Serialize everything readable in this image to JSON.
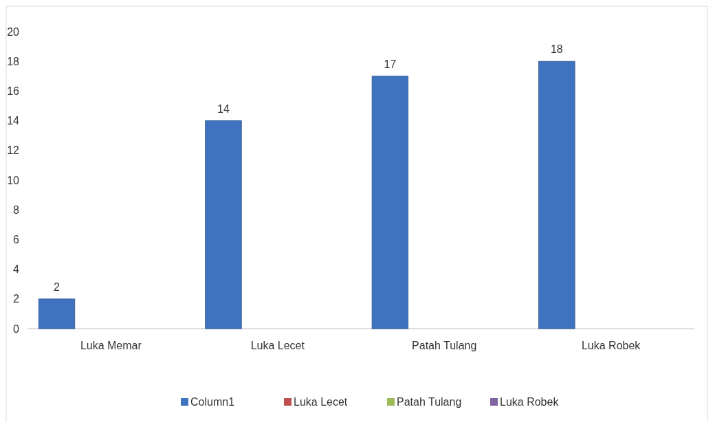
{
  "chart_data": {
    "type": "bar",
    "categories": [
      "Luka Memar",
      "Luka Lecet",
      "Patah Tulang",
      "Luka Robek"
    ],
    "series": [
      {
        "name": "Column1",
        "color": "#3f72bf",
        "values": [
          2,
          14,
          17,
          18
        ]
      },
      {
        "name": "Luka Lecet",
        "color": "#c0504d",
        "values": [
          null,
          null,
          null,
          null
        ]
      },
      {
        "name": "Patah Tulang",
        "color": "#9bbb59",
        "values": [
          null,
          null,
          null,
          null
        ]
      },
      {
        "name": "Luka Robek",
        "color": "#8064a2",
        "values": [
          null,
          null,
          null,
          null
        ]
      }
    ],
    "ylim": [
      0,
      20
    ],
    "yticks": [
      0,
      2,
      4,
      6,
      8,
      10,
      12,
      14,
      16,
      18,
      20
    ],
    "data_labels": true,
    "legend": "bottom",
    "grid": false
  }
}
